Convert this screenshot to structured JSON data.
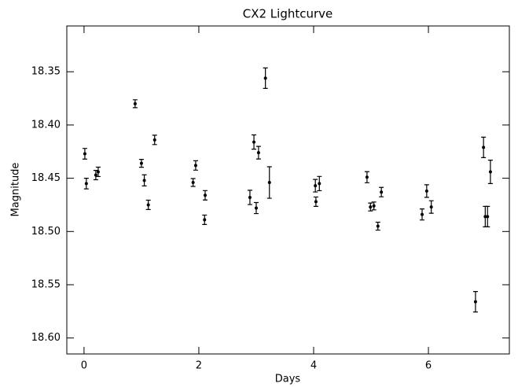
{
  "chart_data": {
    "type": "scatter",
    "title": "CX2 Lightcurve",
    "x_label": "Days",
    "y_label": "Magnitude",
    "xlim": [
      -0.3,
      7.41
    ],
    "ylim": [
      18.307,
      18.615
    ],
    "y_inverted": true,
    "xticks": [
      0,
      2,
      4,
      6
    ],
    "yticks": [
      18.35,
      {
        "value": 18.4,
        "label": "18.40"
      },
      18.45,
      {
        "value": 18.5,
        "label": "18.50"
      },
      18.55,
      {
        "value": 18.6,
        "label": "18.60"
      }
    ],
    "color": "#000000",
    "x": [
      0.014,
      0.04,
      0.205,
      0.247,
      0.89,
      1.0,
      1.05,
      1.12,
      1.23,
      1.9,
      1.945,
      2.11,
      2.1,
      2.89,
      2.96,
      3.0,
      3.04,
      3.16,
      3.23,
      4.03,
      4.04,
      4.1,
      4.93,
      4.99,
      5.05,
      5.12,
      5.18,
      5.89,
      5.97,
      6.05,
      6.82,
      6.96,
      6.99,
      7.03,
      7.08
    ],
    "values": [
      18.427,
      18.455,
      18.447,
      18.444,
      18.38,
      18.436,
      18.452,
      18.475,
      18.414,
      18.454,
      18.438,
      18.466,
      18.489,
      18.468,
      18.416,
      18.478,
      18.426,
      18.356,
      18.454,
      18.457,
      18.472,
      18.455,
      18.449,
      18.477,
      18.476,
      18.495,
      18.463,
      18.484,
      18.462,
      18.477,
      18.566,
      18.421,
      18.486,
      18.486,
      18.444
    ],
    "errors": [
      0.005,
      0.005,
      0.0044,
      0.0044,
      0.0037,
      0.0037,
      0.0052,
      0.0044,
      0.0044,
      0.0037,
      0.0044,
      0.0044,
      0.0044,
      0.0067,
      0.0067,
      0.0052,
      0.0059,
      0.0096,
      0.0148,
      0.0059,
      0.0044,
      0.0067,
      0.0052,
      0.0037,
      0.0037,
      0.0037,
      0.0044,
      0.0052,
      0.0059,
      0.0059,
      0.0096,
      0.0096,
      0.0096,
      0.0096,
      0.011
    ]
  }
}
